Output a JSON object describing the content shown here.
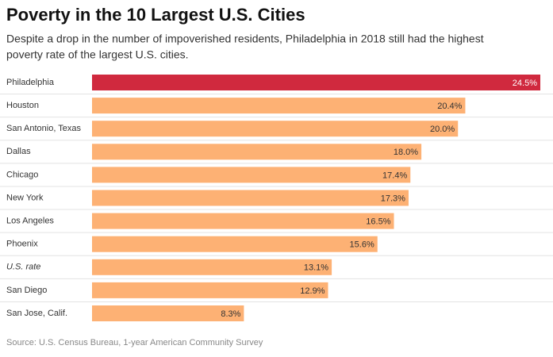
{
  "chart_data": {
    "type": "bar",
    "orientation": "horizontal",
    "title": "Poverty in the 10 Largest U.S. Cities",
    "subtitle_lines": [
      "Despite a drop in the number of impoverished residents, Philadelphia in 2018 still had the highest",
      "poverty rate of the largest U.S. cities."
    ],
    "categories": [
      "Philadelphia",
      "Houston",
      "San Antonio, Texas",
      "Dallas",
      "Chicago",
      "New York",
      "Los Angeles",
      "Phoenix",
      "U.S. rate",
      "San Diego",
      "San Jose, Calif."
    ],
    "values": [
      24.5,
      20.4,
      20.0,
      18.0,
      17.4,
      17.3,
      16.5,
      15.6,
      13.1,
      12.9,
      8.3
    ],
    "value_labels": [
      "24.5%",
      "20.4%",
      "20.0%",
      "18.0%",
      "17.4%",
      "17.3%",
      "16.5%",
      "15.6%",
      "13.1%",
      "12.9%",
      "8.3%"
    ],
    "colors": [
      "#d0293e",
      "#fdb174",
      "#fdb174",
      "#fdb174",
      "#fdb174",
      "#fdb174",
      "#fdb174",
      "#fdb174",
      "#fdb174",
      "#fdb174",
      "#fdb174"
    ],
    "xlim": [
      0,
      24.5
    ],
    "source": "Source: U.S. Census Bureau, 1-year American Community Survey"
  }
}
